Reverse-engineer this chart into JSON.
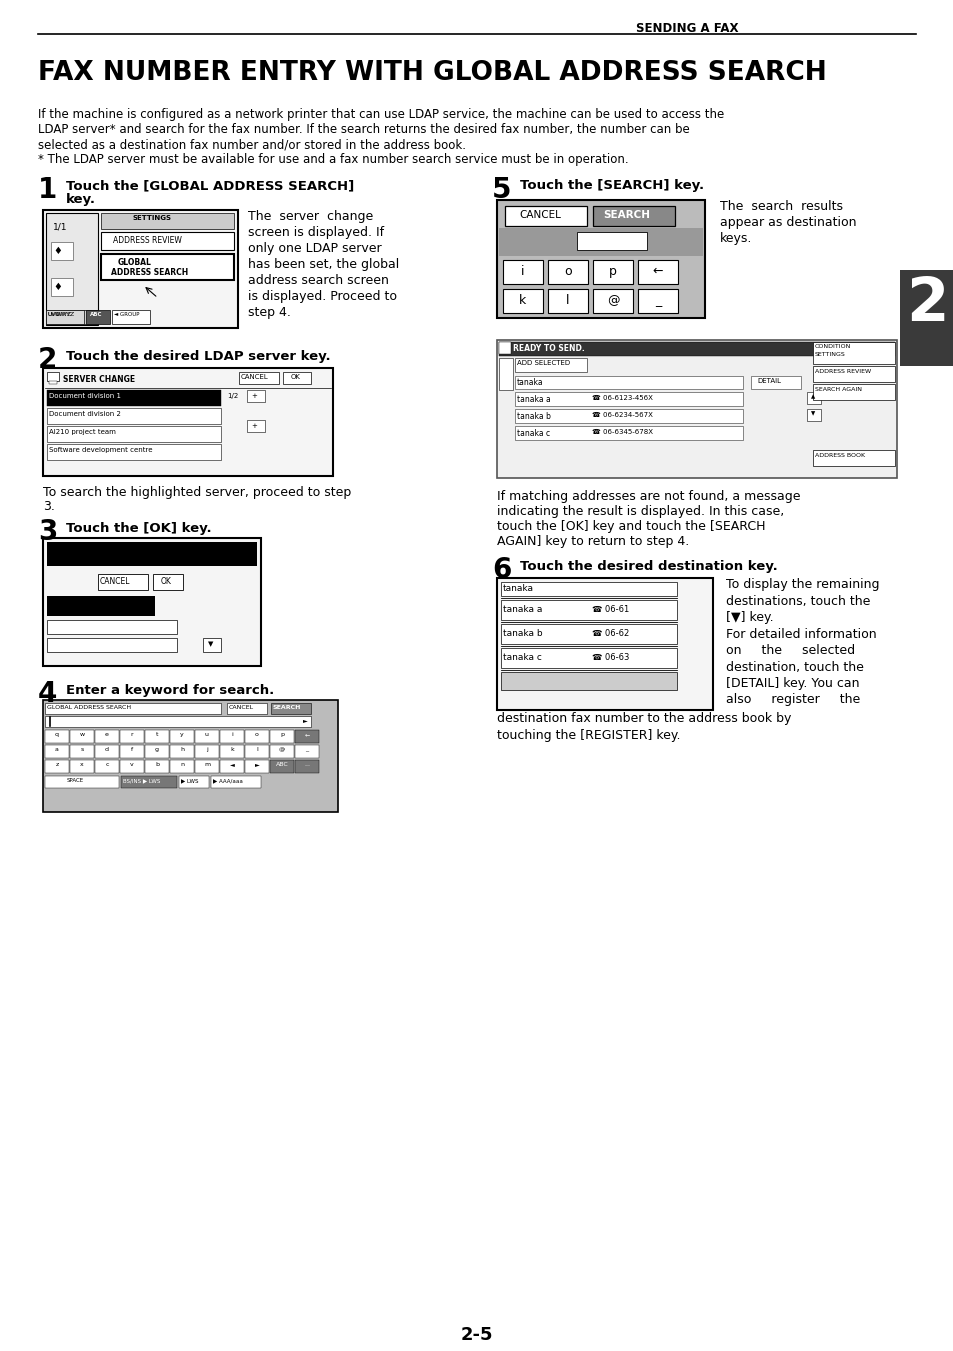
{
  "page_header": "SENDING A FAX",
  "title": "FAX NUMBER ENTRY WITH GLOBAL ADDRESS SEARCH",
  "intro_line1": "If the machine is configured as a network printer that can use LDAP service, the machine can be used to access the",
  "intro_line2": "LDAP server* and search for the fax number. If the search returns the desired fax number, the number can be",
  "intro_line3": "selected as a destination fax number and/or stored in the address book.",
  "intro_line4": "* The LDAP server must be available for use and a fax number search service must be in operation.",
  "step1_title_line1": "Touch the [GLOBAL ADDRESS SEARCH]",
  "step1_title_line2": "key.",
  "step1_desc": [
    "The  server  change",
    "screen is displayed. If",
    "only one LDAP server",
    "has been set, the global",
    "address search screen",
    "is displayed. Proceed to",
    "step 4."
  ],
  "step2_title": "Touch the desired LDAP server key.",
  "step2_sub1": "To search the highlighted server, proceed to step",
  "step2_sub2": "3.",
  "step3_title": "Touch the [OK] key.",
  "step4_title": "Enter a keyword for search.",
  "step5_title": "Touch the [SEARCH] key.",
  "step5_desc": [
    "The  search  results",
    "appear as destination",
    "keys."
  ],
  "step5_sub": [
    "If matching addresses are not found, a message",
    "indicating the result is displayed. In this case,",
    "touch the [OK] key and touch the [SEARCH",
    "AGAIN] key to return to step 4."
  ],
  "step6_title": "Touch the desired destination key.",
  "step6_desc": [
    "To display the remaining",
    "destinations, touch the",
    "[▼] key.",
    "For detailed information",
    "on     the     selected",
    "destination, touch the",
    "[DETAIL] key. You can",
    "also     register     the"
  ],
  "step6_desc2": "destination fax number to the address book by",
  "step6_desc3": "touching the [REGISTER] key.",
  "section_num": "2",
  "page_num": "2-5",
  "bg_color": "#ffffff",
  "dark_bar_color": "#3a3a3a"
}
